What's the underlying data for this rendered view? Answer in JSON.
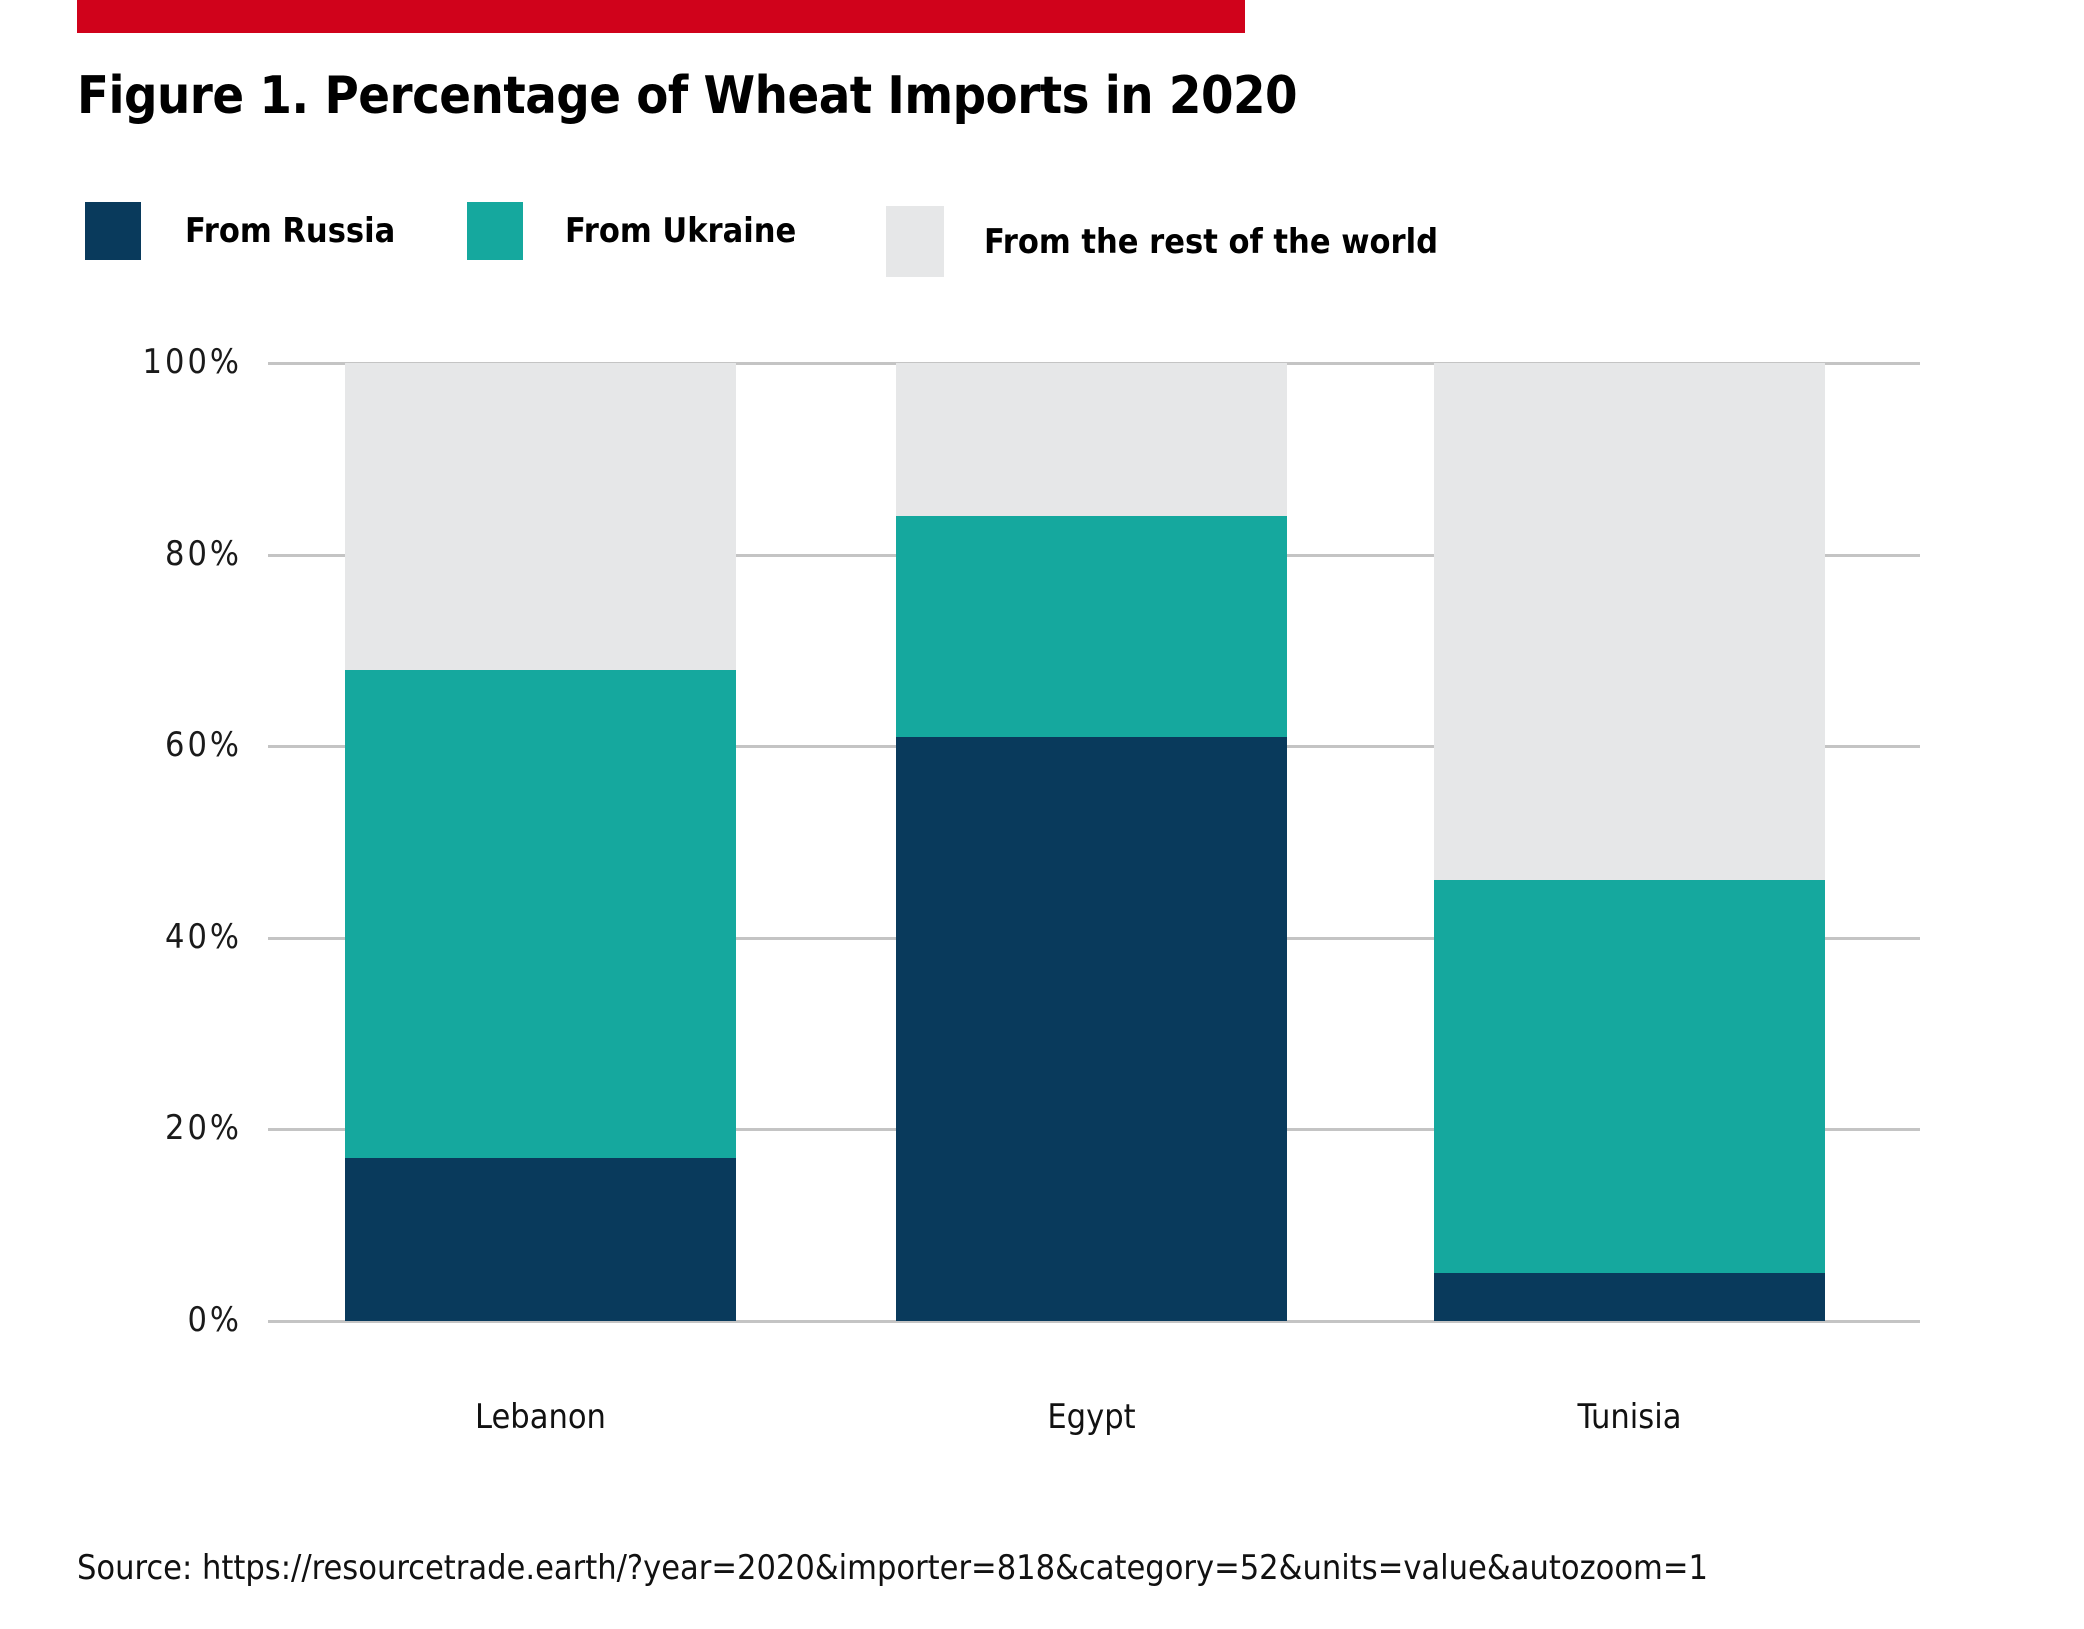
{
  "figure": {
    "source_line": "Source: https://resourcetrade.earth/?year=2020&importer=818&category=52&units=value&autozoom=1"
  },
  "colors": {
    "accent_bar": "#D0021B",
    "gridline": "#C4C4C4",
    "background": "#FFFFFF",
    "russia_navy": "#093A5C",
    "ukraine_teal": "#15A89E",
    "rest_gray": "#E6E7E8"
  },
  "chart_data": {
    "type": "bar",
    "stacked": true,
    "title": "Figure 1. Percentage of Wheat Imports in 2020",
    "categories": [
      "Lebanon",
      "Egypt",
      "Tunisia"
    ],
    "series": [
      {
        "name": "From Russia",
        "color": "#093A5C",
        "values": [
          17,
          61,
          5
        ]
      },
      {
        "name": "From Ukraine",
        "color": "#15A89E",
        "values": [
          51,
          23,
          41
        ]
      },
      {
        "name": "From the rest of the world",
        "color": "#E6E7E8",
        "values": [
          32,
          16,
          54
        ]
      }
    ],
    "xlabel": "",
    "ylabel": "",
    "ylim": [
      0,
      100
    ],
    "yticks": [
      "100%",
      "80%",
      "60%",
      "40%",
      "20%",
      "0%"
    ],
    "grid": true,
    "legend_position": "top"
  }
}
